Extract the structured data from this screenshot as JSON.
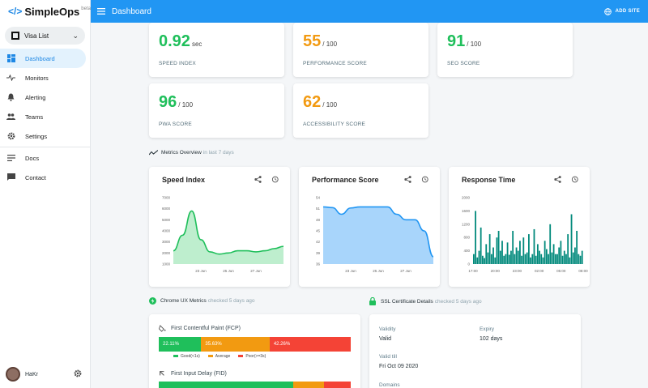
{
  "app": {
    "name": "SimpleOps",
    "badge": "beta",
    "site": "Visa List"
  },
  "sidebar": {
    "items": [
      {
        "label": "Dashboard",
        "icon": "dashboard-icon"
      },
      {
        "label": "Monitors",
        "icon": "pulse-icon"
      },
      {
        "label": "Alerting",
        "icon": "bell-icon"
      },
      {
        "label": "Teams",
        "icon": "people-icon"
      },
      {
        "label": "Settings",
        "icon": "gear-icon"
      },
      {
        "label": "Docs",
        "icon": "docs-icon"
      },
      {
        "label": "Contact",
        "icon": "chat-icon"
      }
    ],
    "user": "HaKr"
  },
  "header": {
    "title": "Dashboard",
    "add_site": "ADD SITE"
  },
  "scores": {
    "speed": {
      "value": "0.92",
      "unit": "sec",
      "label": "SPEED INDEX"
    },
    "performance": {
      "value": "55",
      "unit": "/ 100",
      "label": "PERFORMANCE SCORE"
    },
    "seo": {
      "value": "91",
      "unit": "/ 100",
      "label": "SEO SCORE"
    },
    "pwa": {
      "value": "96",
      "unit": "/ 100",
      "label": "PWA SCORE"
    },
    "accessibility": {
      "value": "62",
      "unit": "/ 100",
      "label": "ACCESSIBILITY SCORE"
    }
  },
  "metrics_overview": {
    "title": "Metrics Overview",
    "sub": "in last 7 days"
  },
  "chart_data": [
    {
      "type": "area",
      "title": "Speed Index",
      "x_ticks": [
        "23 Jun",
        "25 Jun",
        "27 Jun"
      ],
      "y_ticks": [
        "7000",
        "6000",
        "5000",
        "4000",
        "3000",
        "2000",
        "1000"
      ],
      "ylim": [
        1000,
        7000
      ],
      "x": [
        0,
        1,
        2,
        3,
        4,
        5,
        6,
        7,
        8,
        9,
        10,
        11,
        12
      ],
      "values": [
        2200,
        3600,
        5800,
        3200,
        2100,
        1900,
        2000,
        2200,
        2200,
        2100,
        2200,
        2400,
        2600
      ],
      "color": "#1fbf5b"
    },
    {
      "type": "area",
      "title": "Performance Score",
      "x_ticks": [
        "23 Jun",
        "25 Jun",
        "27 Jun"
      ],
      "y_ticks": [
        "54",
        "51",
        "48",
        "45",
        "42",
        "39",
        "36"
      ],
      "ylim": [
        36,
        54
      ],
      "x": [
        0,
        1,
        2,
        3,
        4,
        5,
        6,
        7,
        8,
        9,
        10,
        11,
        12
      ],
      "values": [
        51.5,
        51.3,
        49.5,
        51.2,
        51.5,
        51.5,
        51.5,
        51.5,
        49.5,
        48,
        48,
        45,
        38
      ],
      "color": "#2196f3"
    },
    {
      "type": "bar",
      "title": "Response Time",
      "x_ticks": [
        "17:00",
        "20:00",
        "23:00",
        "02:00",
        "05:00",
        "08:00"
      ],
      "y_ticks": [
        "2000",
        "1600",
        "1200",
        "800",
        "400",
        "0"
      ],
      "ylim": [
        0,
        2000
      ],
      "values": [
        300,
        1600,
        200,
        400,
        1100,
        250,
        180,
        600,
        350,
        900,
        300,
        500,
        200,
        800,
        1000,
        400,
        700,
        250,
        300,
        650,
        280,
        400,
        1000,
        300,
        500,
        400,
        700,
        250,
        800,
        300,
        350,
        900,
        200,
        300,
        1050,
        250,
        600,
        400,
        300,
        200,
        700,
        450,
        300,
        1200,
        350,
        600,
        300,
        300,
        500,
        700,
        250,
        400,
        300,
        900,
        200,
        1500,
        350,
        500,
        1000,
        300,
        250,
        400
      ],
      "color": "#00897b"
    }
  ],
  "chrome_ux": {
    "title": "Chrome UX Metrics",
    "sub": "checked 5 days ago",
    "fcp": {
      "label": "First Contentful Paint (FCP)",
      "good": "22.11%",
      "average": "35.63%",
      "poor": "42.26%"
    },
    "fid": {
      "label": "First Input Delay (FID)"
    },
    "legend": {
      "good": "Good(<1s)",
      "average": "Average",
      "poor": "Poor(>=3s)"
    },
    "colors": {
      "good": "#1fbf5b",
      "average": "#f29a11",
      "poor": "#f44336"
    }
  },
  "ssl": {
    "title": "SSL Certificate Details",
    "sub": "checked 5 days ago",
    "validity_label": "Validity",
    "validity_value": "Valid",
    "expiry_label": "Expiry",
    "expiry_value": "102 days",
    "valid_till_label": "Valid till",
    "valid_till_value": "Fri Oct 09 2020",
    "domains_label": "Domains"
  }
}
